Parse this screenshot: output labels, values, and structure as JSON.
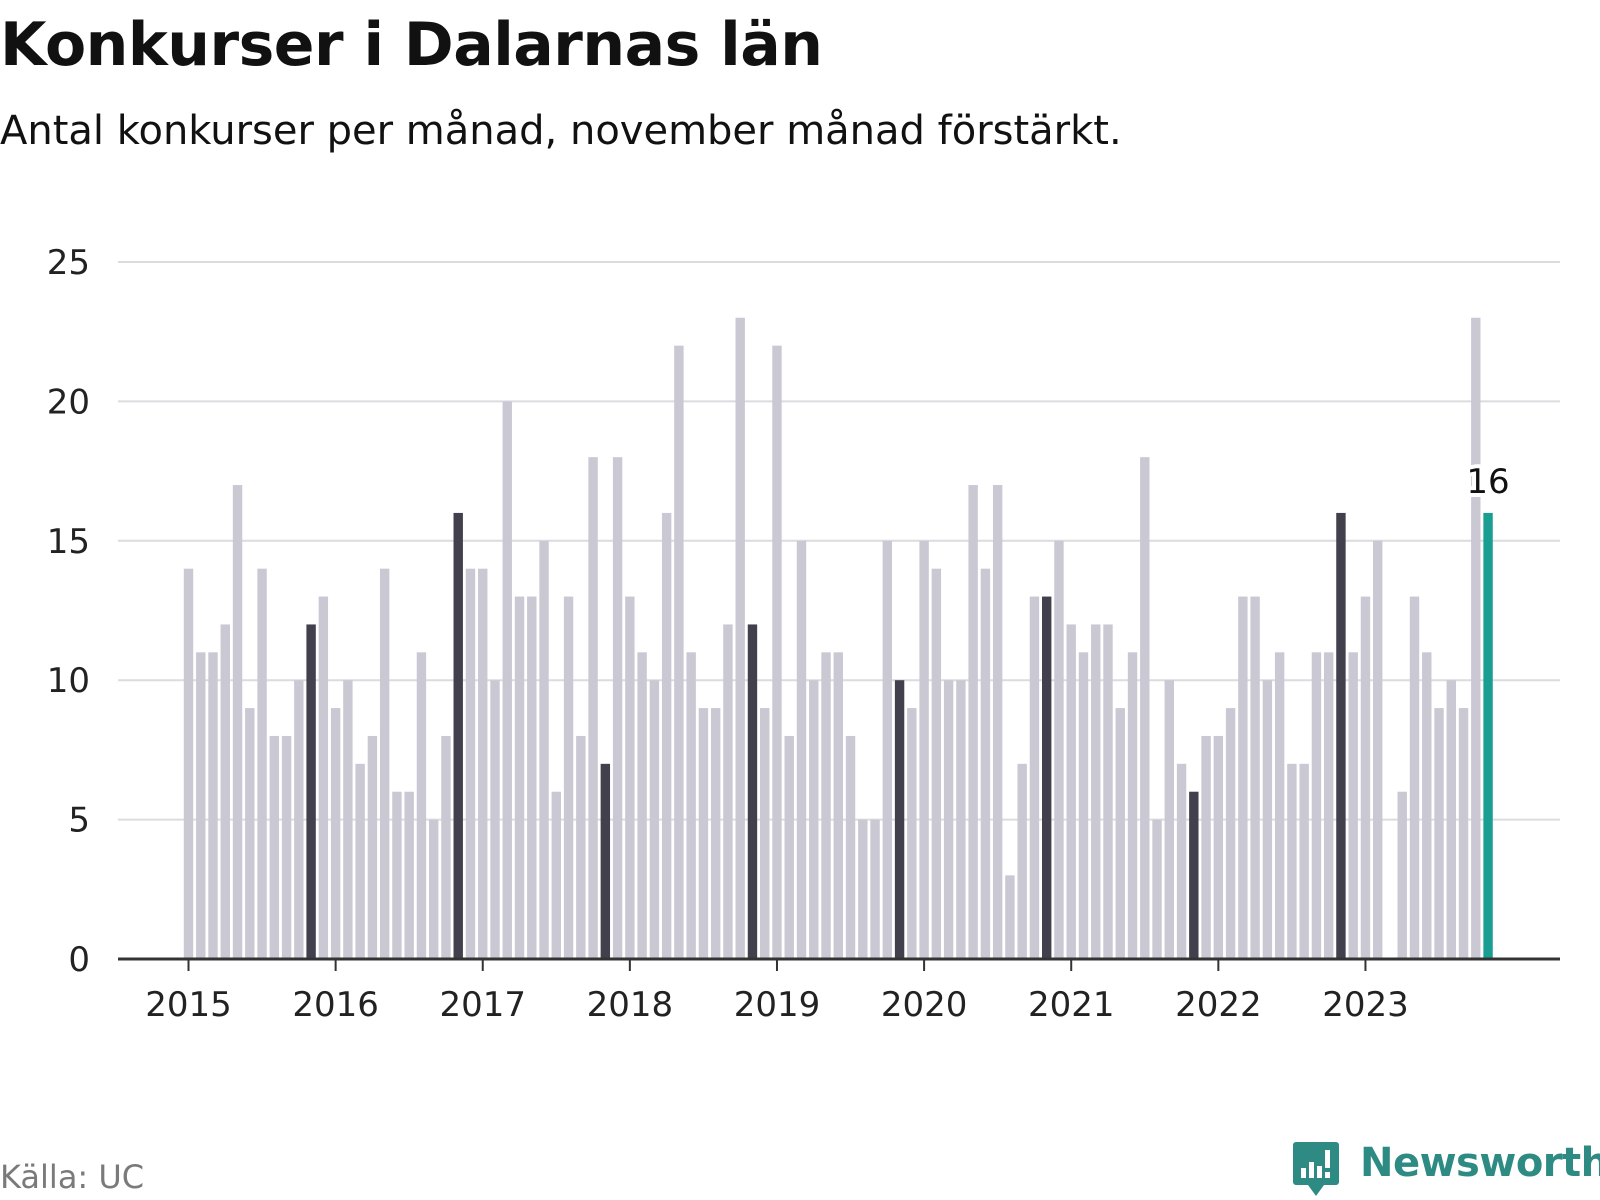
{
  "title": "Konkurser i Dalarnas län",
  "subtitle": "Antal konkurser per månad, november månad förstärkt.",
  "source": "Källa: UC",
  "brand": "Newsworthy",
  "colors": {
    "normal": "#cac8d3",
    "november": "#42404c",
    "latest": "#1a9e92",
    "grid": "#dcdce0",
    "axis": "#333333",
    "brand": "#2e8b83"
  },
  "chart_data": {
    "type": "bar",
    "title": "Konkurser i Dalarnas län",
    "subtitle": "Antal konkurser per månad, november månad förstärkt.",
    "ylim": [
      0,
      25
    ],
    "yticks": [
      "0",
      "5",
      "10",
      "15",
      "20",
      "25"
    ],
    "year_labels": [
      "2015",
      "2016",
      "2017",
      "2018",
      "2019",
      "2020",
      "2021",
      "2022",
      "2023"
    ],
    "start": "2015-01",
    "end": "2023-11",
    "highlight_month": "november",
    "latest_label": "16",
    "grid": true,
    "values": [
      14,
      11,
      11,
      12,
      17,
      9,
      14,
      8,
      8,
      10,
      12,
      13,
      9,
      10,
      7,
      8,
      14,
      6,
      6,
      11,
      5,
      8,
      16,
      14,
      14,
      10,
      20,
      13,
      13,
      15,
      6,
      13,
      8,
      18,
      7,
      18,
      13,
      11,
      10,
      16,
      22,
      11,
      9,
      9,
      12,
      23,
      12,
      9,
      22,
      8,
      15,
      10,
      11,
      11,
      8,
      5,
      5,
      15,
      10,
      9,
      15,
      14,
      10,
      10,
      17,
      14,
      17,
      3,
      7,
      13,
      13,
      15,
      12,
      11,
      12,
      12,
      9,
      11,
      18,
      5,
      10,
      7,
      6,
      8,
      8,
      9,
      13,
      13,
      10,
      11,
      7,
      7,
      11,
      11,
      16,
      11,
      13,
      15,
      0,
      6,
      13,
      11,
      9,
      10,
      9,
      23,
      16
    ]
  }
}
